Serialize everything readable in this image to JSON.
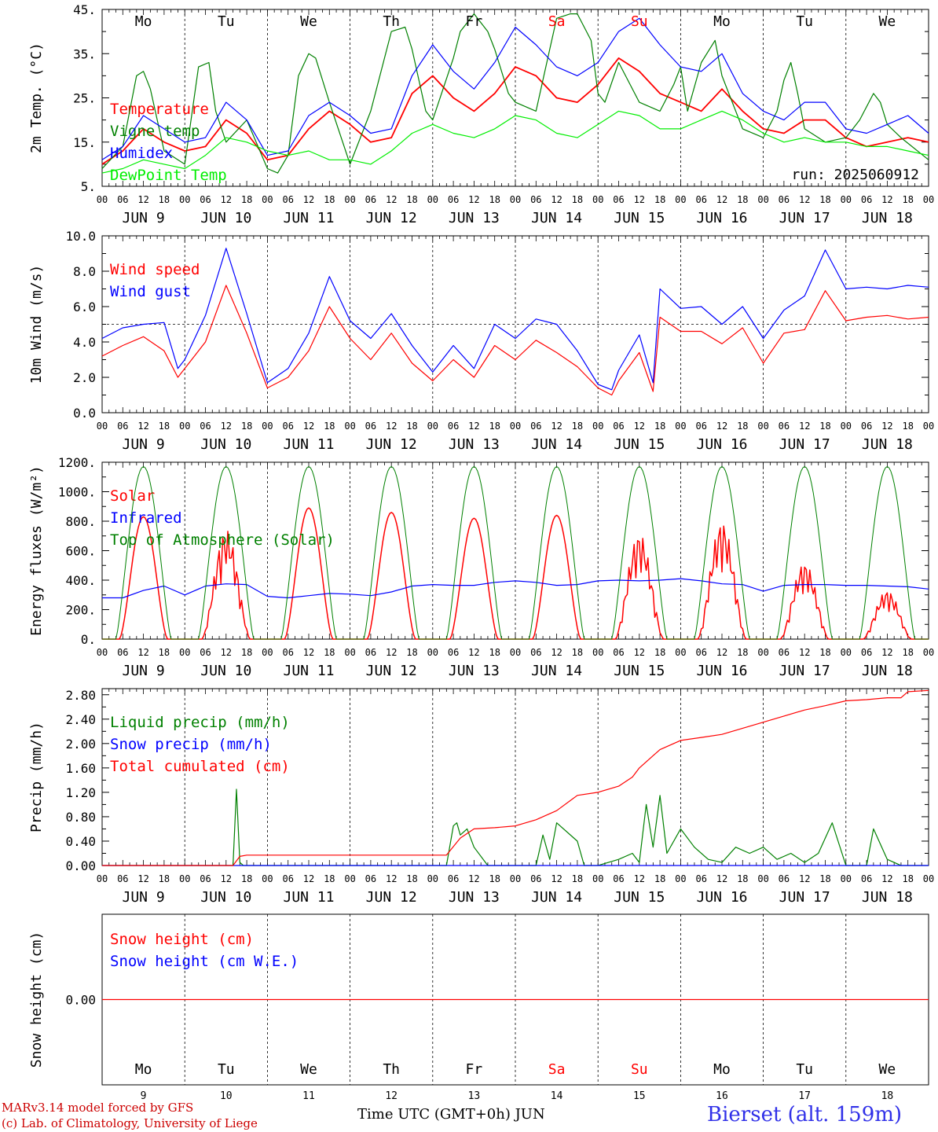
{
  "chart_data": [
    {
      "type": "line",
      "panel": "temperature",
      "ylabel": "2m Temp. (°C)",
      "ylim": [
        5,
        45
      ],
      "yticks": [
        "5.",
        "15.",
        "25.",
        "35.",
        "45."
      ],
      "x_unit": "hours since 2025-06-09 00 UTC",
      "run_label": "run: 2025060912",
      "series": [
        {
          "name": "Temperature",
          "color": "#ff0000",
          "x": [
            0,
            6,
            12,
            18,
            24,
            30,
            36,
            42,
            48,
            54,
            60,
            66,
            72,
            78,
            84,
            90,
            96,
            102,
            108,
            114,
            120,
            126,
            132,
            138,
            144,
            150,
            156,
            162,
            168,
            174,
            180,
            186,
            192,
            198,
            204,
            210,
            216,
            222,
            228,
            234,
            240
          ],
          "y": [
            10,
            13,
            18,
            15,
            13,
            14,
            20,
            17,
            11,
            12,
            18,
            22,
            19,
            15,
            16,
            26,
            30,
            25,
            22,
            26,
            32,
            30,
            25,
            24,
            28,
            34,
            31,
            26,
            24,
            22,
            27,
            22,
            18,
            17,
            20,
            20,
            16,
            14,
            15,
            16,
            15
          ]
        },
        {
          "name": "Vigne temp",
          "color": "#008000",
          "x": [
            0,
            6,
            10,
            12,
            14,
            18,
            24,
            28,
            31,
            33,
            36,
            42,
            48,
            51,
            54,
            57,
            60,
            62,
            66,
            72,
            78,
            84,
            88,
            90,
            94,
            96,
            102,
            104,
            108,
            112,
            114,
            118,
            120,
            126,
            130,
            132,
            136,
            138,
            142,
            144,
            146,
            150,
            152,
            156,
            162,
            166,
            168,
            170,
            174,
            178,
            180,
            186,
            192,
            196,
            198,
            200,
            202,
            204,
            210,
            216,
            220,
            224,
            226,
            228,
            232,
            240
          ],
          "y": [
            9,
            14,
            30,
            31,
            27,
            13,
            10,
            32,
            33,
            22,
            15,
            20,
            9,
            8,
            12,
            30,
            35,
            34,
            24,
            10,
            22,
            40,
            41,
            36,
            22,
            20,
            34,
            40,
            44,
            40,
            36,
            26,
            24,
            22,
            36,
            43,
            44,
            44,
            38,
            26,
            24,
            33,
            30,
            24,
            22,
            28,
            32,
            22,
            33,
            38,
            30,
            18,
            16,
            22,
            29,
            33,
            26,
            18,
            15,
            16,
            20,
            26,
            24,
            19,
            16,
            11
          ]
        },
        {
          "name": "Humidex",
          "color": "#0000ff",
          "x": [
            0,
            6,
            12,
            18,
            24,
            30,
            36,
            42,
            48,
            54,
            60,
            66,
            72,
            78,
            84,
            90,
            96,
            102,
            108,
            114,
            120,
            126,
            132,
            138,
            144,
            150,
            156,
            162,
            168,
            174,
            180,
            186,
            192,
            198,
            204,
            210,
            216,
            222,
            228,
            234,
            240
          ],
          "y": [
            11,
            14,
            21,
            18,
            15,
            16,
            24,
            20,
            12,
            13,
            21,
            24,
            21,
            17,
            18,
            30,
            37,
            31,
            27,
            33,
            41,
            37,
            32,
            30,
            33,
            40,
            43,
            37,
            32,
            31,
            35,
            26,
            22,
            20,
            24,
            24,
            18,
            17,
            19,
            21,
            17
          ]
        },
        {
          "name": "DewPoint Temp",
          "color": "#00ee00",
          "x": [
            0,
            6,
            12,
            18,
            24,
            30,
            36,
            42,
            48,
            54,
            60,
            66,
            72,
            78,
            84,
            90,
            96,
            102,
            108,
            114,
            120,
            126,
            132,
            138,
            144,
            150,
            156,
            162,
            168,
            174,
            180,
            186,
            192,
            198,
            204,
            210,
            216,
            222,
            228,
            234,
            240
          ],
          "y": [
            8,
            9,
            11,
            10,
            9,
            12,
            16,
            15,
            13,
            12,
            13,
            11,
            11,
            10,
            13,
            17,
            19,
            17,
            16,
            18,
            21,
            20,
            17,
            16,
            19,
            22,
            21,
            18,
            18,
            20,
            22,
            20,
            17,
            15,
            16,
            15,
            15,
            14,
            14,
            13,
            12
          ]
        }
      ]
    },
    {
      "type": "line",
      "panel": "wind",
      "ylabel": "10m Wind (m/s)",
      "ylim": [
        0,
        10
      ],
      "yticks": [
        "0.0",
        "2.0",
        "4.0",
        "6.0",
        "8.0",
        "10.0"
      ],
      "reference_line": 5.0,
      "series": [
        {
          "name": "Wind speed",
          "color": "#ff0000",
          "x": [
            0,
            6,
            12,
            18,
            22,
            24,
            30,
            36,
            42,
            48,
            54,
            60,
            66,
            72,
            78,
            84,
            90,
            96,
            102,
            108,
            114,
            120,
            126,
            132,
            138,
            144,
            148,
            150,
            156,
            160,
            162,
            168,
            174,
            180,
            186,
            192,
            198,
            204,
            210,
            216,
            222,
            228,
            234,
            240
          ],
          "y": [
            3.2,
            3.8,
            4.3,
            3.5,
            2.0,
            2.5,
            4.0,
            7.2,
            4.5,
            1.4,
            2.0,
            3.5,
            6.0,
            4.2,
            3.0,
            4.5,
            2.8,
            1.8,
            3.0,
            2.0,
            3.8,
            3.0,
            4.1,
            3.4,
            2.6,
            1.4,
            1.0,
            1.8,
            3.4,
            1.2,
            5.4,
            4.6,
            4.6,
            3.9,
            4.8,
            2.8,
            4.5,
            4.7,
            6.9,
            5.2,
            5.4,
            5.5,
            5.3,
            5.4
          ]
        },
        {
          "name": "Wind gust",
          "color": "#0000ff",
          "x": [
            0,
            6,
            12,
            18,
            22,
            24,
            30,
            36,
            42,
            48,
            54,
            60,
            66,
            72,
            78,
            84,
            90,
            96,
            102,
            108,
            114,
            120,
            126,
            132,
            138,
            144,
            148,
            150,
            156,
            160,
            162,
            168,
            174,
            180,
            186,
            192,
            198,
            204,
            210,
            216,
            222,
            228,
            234,
            240
          ],
          "y": [
            4.2,
            4.8,
            5.0,
            5.1,
            2.5,
            3.0,
            5.5,
            9.3,
            5.6,
            1.7,
            2.5,
            4.5,
            7.7,
            5.2,
            4.2,
            5.6,
            3.8,
            2.3,
            3.8,
            2.5,
            5.0,
            4.2,
            5.3,
            5.0,
            3.5,
            1.6,
            1.3,
            2.4,
            4.4,
            1.7,
            7.0,
            5.9,
            6.0,
            5.0,
            6.0,
            4.2,
            5.8,
            6.6,
            9.2,
            7.0,
            7.1,
            7.0,
            7.2,
            7.1
          ]
        }
      ]
    },
    {
      "type": "line",
      "panel": "energy",
      "ylabel": "Energy fluxes (W/m²)",
      "ylim": [
        0,
        1200
      ],
      "yticks": [
        "0.",
        "200.",
        "400.",
        "600.",
        "800.",
        "1000.",
        "1200."
      ],
      "solar_peaks": [
        830,
        740,
        890,
        860,
        820,
        840,
        720,
        800,
        520,
        330
      ],
      "series": [
        {
          "name": "Solar",
          "color": "#ff0000"
        },
        {
          "name": "Infrared",
          "color": "#0000ff",
          "x": [
            0,
            6,
            12,
            18,
            24,
            30,
            36,
            42,
            48,
            54,
            60,
            66,
            72,
            78,
            84,
            90,
            96,
            102,
            108,
            114,
            120,
            126,
            132,
            138,
            144,
            150,
            156,
            162,
            168,
            174,
            180,
            186,
            192,
            198,
            204,
            210,
            216,
            222,
            228,
            234,
            240
          ],
          "y": [
            280,
            280,
            330,
            360,
            300,
            360,
            375,
            370,
            290,
            280,
            295,
            310,
            305,
            295,
            320,
            360,
            370,
            365,
            365,
            385,
            395,
            385,
            365,
            370,
            395,
            400,
            395,
            400,
            410,
            395,
            375,
            370,
            325,
            365,
            370,
            370,
            365,
            365,
            360,
            355,
            340
          ]
        },
        {
          "name": "Top of Atmosphere (Solar)",
          "color": "#008000",
          "peak": 1170
        }
      ]
    },
    {
      "type": "line",
      "panel": "precip",
      "ylabel": "Precip (mm/h)",
      "ylim": [
        0,
        2.9
      ],
      "yticks": [
        "0.00",
        "0.40",
        "0.80",
        "1.20",
        "1.60",
        "2.00",
        "2.40",
        "2.80"
      ],
      "series": [
        {
          "name": "Liquid precip (mm/h)",
          "color": "#008000",
          "x": [
            0,
            38,
            39,
            40,
            41,
            42,
            100,
            102,
            103,
            104,
            106,
            108,
            112,
            126,
            128,
            130,
            132,
            138,
            140,
            144,
            150,
            154,
            156,
            158,
            160,
            162,
            164,
            168,
            172,
            176,
            180,
            184,
            188,
            192,
            196,
            200,
            204,
            208,
            212,
            216,
            220,
            222,
            224,
            228,
            232,
            236,
            240
          ],
          "y": [
            0,
            0,
            1.25,
            0.05,
            0,
            0,
            0,
            0.65,
            0.7,
            0.5,
            0.6,
            0.3,
            0,
            0,
            0.5,
            0.1,
            0.7,
            0.4,
            0,
            0,
            0.1,
            0.2,
            0.05,
            1.0,
            0.3,
            1.15,
            0.2,
            0.6,
            0.3,
            0.1,
            0.05,
            0.3,
            0.2,
            0.3,
            0.1,
            0.2,
            0.05,
            0.2,
            0.7,
            0,
            0,
            0,
            0.6,
            0.1,
            0,
            0,
            0
          ]
        },
        {
          "name": "Snow precip (mm/h)",
          "color": "#0000ff",
          "x": [
            0,
            240
          ],
          "y": [
            0,
            0
          ]
        },
        {
          "name": "Total cumulated (cm)",
          "color": "#ff0000",
          "x": [
            0,
            38,
            40,
            42,
            48,
            100,
            104,
            108,
            114,
            120,
            126,
            132,
            138,
            144,
            150,
            154,
            156,
            160,
            162,
            168,
            174,
            180,
            186,
            192,
            198,
            204,
            210,
            216,
            222,
            228,
            232,
            234,
            240
          ],
          "y": [
            0,
            0,
            0.15,
            0.17,
            0.17,
            0.17,
            0.45,
            0.6,
            0.62,
            0.65,
            0.75,
            0.9,
            1.15,
            1.2,
            1.3,
            1.45,
            1.6,
            1.8,
            1.9,
            2.05,
            2.1,
            2.15,
            2.25,
            2.35,
            2.45,
            2.55,
            2.62,
            2.7,
            2.72,
            2.75,
            2.75,
            2.85,
            2.87
          ]
        }
      ]
    },
    {
      "type": "line",
      "panel": "snow",
      "ylabel": "Snow height (cm)",
      "ylim": [
        -1,
        1
      ],
      "yticks": [
        "0.00"
      ],
      "series": [
        {
          "name": "Snow height (cm)",
          "color": "#ff0000",
          "x": [
            0,
            240
          ],
          "y": [
            0,
            0
          ]
        },
        {
          "name": "Snow height (cm W.E.)",
          "color": "#0000ff"
        }
      ]
    }
  ],
  "x_axis": {
    "hour_labels": [
      "00",
      "06",
      "12",
      "18"
    ],
    "final_hour_label": "00",
    "date_labels": [
      "JUN  9",
      "JUN 10",
      "JUN 11",
      "JUN 12",
      "JUN 13",
      "JUN 14",
      "JUN 15",
      "JUN 16",
      "JUN 17",
      "JUN 18"
    ],
    "day_names": [
      "Mo",
      "Tu",
      "We",
      "Th",
      "Fr",
      "Sa",
      "Su",
      "Mo",
      "Tu",
      "We"
    ],
    "day_colors": [
      "#000000",
      "#000000",
      "#000000",
      "#000000",
      "#000000",
      "#ff0000",
      "#ff0000",
      "#000000",
      "#000000",
      "#000000"
    ],
    "day_numbers": [
      "9",
      "10",
      "11",
      "12",
      "13",
      "14",
      "15",
      "16",
      "17",
      "18"
    ]
  },
  "footer": {
    "model": "MARv3.14 model forced by GFS",
    "copyright": "(c) Lab. of Climatology, University of Liege",
    "axis_title": "Time UTC (GMT+0h) JUN",
    "station": "Bierset (alt. 159m)"
  }
}
